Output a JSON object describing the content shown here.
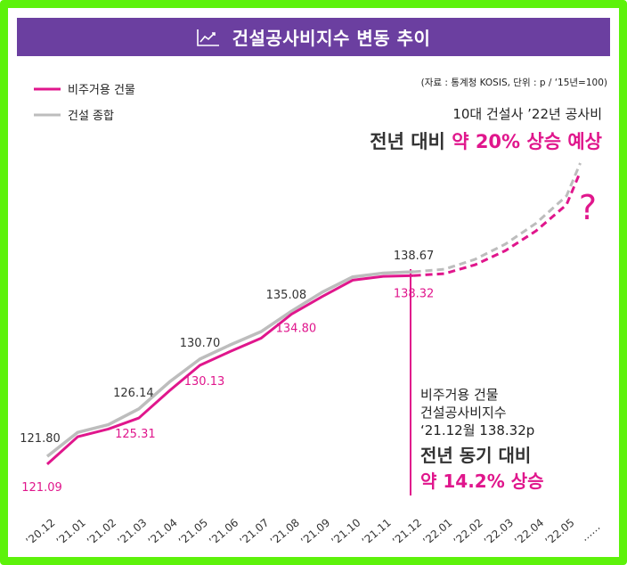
{
  "header": {
    "title": "건설공사비지수 변동 추이",
    "icon": "line-chart-icon"
  },
  "source_note": "(자료 : 통계청 KOSIS, 단위 : p / ‘15년=100)",
  "headline": {
    "line1": "10대 건설사 ’22년 공사비",
    "line2_prefix": "전년 대비 ",
    "line2_highlight": "약 20% 상승 예상"
  },
  "question_mark": "?",
  "callout": {
    "line1": "비주거용 건물",
    "line2": "건설공사비지수",
    "line3": "‘21.12월 138.32p",
    "line4": "전년 동기 대비",
    "line5": "약 14.2% 상승"
  },
  "colors": {
    "series_main": "#e0168c",
    "series_total": "#bdbdbd",
    "header_bg": "#6b3fa0",
    "border": "#5df20b",
    "accent_text": "#e0168c"
  },
  "chart_data": {
    "type": "line",
    "title": "건설공사비지수 변동 추이",
    "categories": [
      "’20.12",
      "’21.01",
      "’21.02",
      "’21.03",
      "’21.04",
      "’21.05",
      "’21.06",
      "’21.07",
      "’21.08",
      "’21.09",
      "’21.10",
      "’21.11",
      "’21.12",
      "’22.01",
      "’22.02",
      "’22.03",
      "’22.04",
      "’22.05",
      "……"
    ],
    "series": [
      {
        "name": "비주거용 건물",
        "values": [
          121.09,
          123.6,
          124.3,
          125.31,
          127.8,
          130.13,
          131.4,
          132.6,
          134.8,
          136.4,
          137.9,
          138.25,
          138.32,
          null,
          null,
          null,
          null,
          null,
          null
        ],
        "projection": [
          138.32,
          138.5,
          139.3,
          140.6,
          142.4,
          144.8,
          147.8
        ],
        "labels": {
          "0": "121.09",
          "3": "125.31",
          "5": "130.13",
          "8": "134.80",
          "12": "138.32"
        }
      },
      {
        "name": "건설 종합",
        "values": [
          121.8,
          124.0,
          124.7,
          126.14,
          128.6,
          130.7,
          132.0,
          133.2,
          135.08,
          136.8,
          138.2,
          138.55,
          138.67,
          null,
          null,
          null,
          null,
          null,
          null
        ],
        "projection": [
          138.67,
          138.9,
          139.8,
          141.2,
          143.1,
          145.6,
          148.6
        ],
        "labels": {
          "0": "121.80",
          "3": "126.14",
          "5": "130.70",
          "8": "135.08",
          "12": "138.67"
        }
      }
    ],
    "legend": [
      "비주거용 건물",
      "건설 종합"
    ],
    "legend_position": "top-left",
    "grid": false
  }
}
